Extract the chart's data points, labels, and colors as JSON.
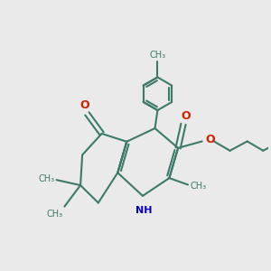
{
  "bg_color": "#eaeaea",
  "bond_color": "#3d7a6a",
  "oxygen_color": "#cc2200",
  "nitrogen_color": "#0000cc",
  "lw": 1.5,
  "figsize": [
    3.0,
    3.0
  ],
  "dpi": 100,
  "xlim": [
    0,
    10
  ],
  "ylim": [
    0,
    10
  ]
}
